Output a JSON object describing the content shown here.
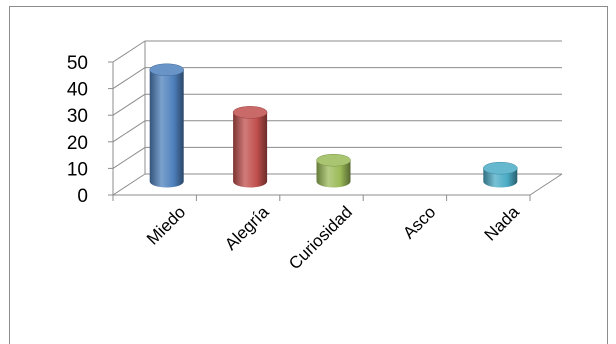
{
  "chart_data": {
    "type": "bar",
    "style": "3d-cylinder",
    "categories": [
      "Miedo",
      "Alegría",
      "Curiosidad",
      "Asco",
      "Nada"
    ],
    "values": [
      42,
      26,
      8,
      0,
      5
    ],
    "colors": [
      "#4f81bd",
      "#c0504d",
      "#9bbb59",
      "#8064a2",
      "#4bacc6"
    ],
    "ylim": [
      0,
      50
    ],
    "yticks": [
      "0",
      "10",
      "20",
      "30",
      "40",
      "50"
    ],
    "grid": true,
    "legend": "none",
    "title": "",
    "xlabel": "",
    "ylabel": ""
  }
}
